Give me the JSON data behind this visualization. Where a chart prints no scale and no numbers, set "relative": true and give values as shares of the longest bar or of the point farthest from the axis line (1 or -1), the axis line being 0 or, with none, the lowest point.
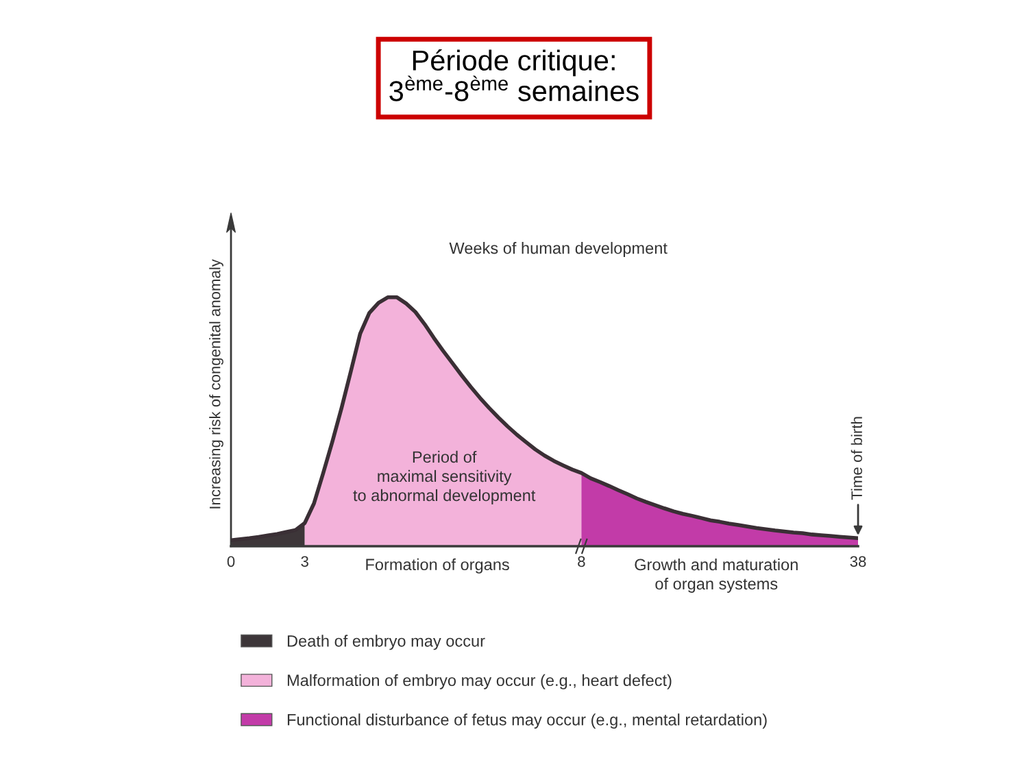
{
  "chart_data": {
    "type": "area",
    "title": "Période critique:\n3$^{ème}$-8$^{ème}$ semaines",
    "xlabel": "Weeks of human development",
    "ylabel": "Increasing risk of congenital anomaly",
    "relative": true,
    "legend": "bottom",
    "categories": [
      "0",
      null,
      null,
      null,
      null,
      null,
      null,
      null,
      "3",
      null,
      null,
      null,
      null,
      null,
      null,
      null,
      null,
      null,
      null,
      null,
      null,
      null,
      null,
      null,
      null,
      null,
      null,
      null,
      null,
      null,
      null,
      null,
      null,
      null,
      null,
      null,
      null,
      null,
      "8",
      null,
      null,
      null,
      null,
      null,
      null,
      null,
      null,
      null,
      null,
      null,
      null,
      null,
      null,
      null,
      null,
      null,
      null,
      null,
      null,
      null,
      null,
      null,
      null,
      null,
      null,
      null,
      null,
      null,
      "38"
    ],
    "series": [
      {
        "name": "Death of embryo may occur",
        "color": "#3d3639",
        "values": [
          0.024,
          0.028,
          0.032,
          0.037,
          0.043,
          0.049,
          0.057,
          0.065,
          0.093,
          null,
          null,
          null,
          null,
          null,
          null,
          null,
          null,
          null,
          null,
          null,
          null,
          null,
          null,
          null,
          null,
          null,
          null,
          null,
          null,
          null,
          null,
          null,
          null,
          null,
          null,
          null,
          null,
          null,
          null,
          null,
          null,
          null,
          null,
          null,
          null,
          null,
          null,
          null,
          null,
          null,
          null,
          null,
          null,
          null,
          null,
          null,
          null,
          null,
          null,
          null,
          null,
          null,
          null,
          null,
          null,
          null,
          null,
          null,
          null
        ]
      },
      {
        "name": "Malformation of embryo may occur (e.g., heart defect)",
        "color": "#f3b2da",
        "values": [
          null,
          null,
          null,
          null,
          null,
          null,
          null,
          null,
          0.093,
          0.172,
          0.294,
          0.421,
          0.557,
          0.703,
          0.853,
          0.937,
          0.978,
          1,
          1,
          0.975,
          0.941,
          0.892,
          0.837,
          0.785,
          0.736,
          0.687,
          0.64,
          0.596,
          0.555,
          0.517,
          0.481,
          0.448,
          0.418,
          0.389,
          0.364,
          0.343,
          0.325,
          0.308,
          0.294,
          null,
          null,
          null,
          null,
          null,
          null,
          null,
          null,
          null,
          null,
          null,
          null,
          null,
          null,
          null,
          null,
          null,
          null,
          null,
          null,
          null,
          null,
          null,
          null,
          null,
          null,
          null,
          null,
          null,
          null
        ]
      },
      {
        "name": "Functional disturbance of fetus may occur (e.g., mental retardation)",
        "color": "#c23ba8",
        "values": [
          null,
          null,
          null,
          null,
          null,
          null,
          null,
          null,
          null,
          null,
          null,
          null,
          null,
          null,
          null,
          null,
          null,
          null,
          null,
          null,
          null,
          null,
          null,
          null,
          null,
          null,
          null,
          null,
          null,
          null,
          null,
          null,
          null,
          null,
          null,
          null,
          null,
          null,
          0.294,
          0.273,
          0.258,
          0.242,
          0.225,
          0.209,
          0.192,
          0.178,
          0.165,
          0.152,
          0.14,
          0.13,
          0.122,
          0.113,
          0.104,
          0.098,
          0.091,
          0.085,
          0.079,
          0.073,
          0.068,
          0.063,
          0.059,
          0.055,
          0.052,
          0.047,
          0.044,
          0.041,
          0.038,
          0.035,
          0.032
        ]
      },
      {
        "type": "line",
        "color": "#3a2f35",
        "values": [
          0.024,
          0.028,
          0.032,
          0.037,
          0.043,
          0.049,
          0.057,
          0.065,
          0.093,
          0.172,
          0.294,
          0.421,
          0.557,
          0.703,
          0.853,
          0.937,
          0.978,
          1,
          1,
          0.975,
          0.941,
          0.892,
          0.837,
          0.785,
          0.736,
          0.687,
          0.64,
          0.596,
          0.555,
          0.517,
          0.481,
          0.448,
          0.418,
          0.389,
          0.364,
          0.343,
          0.325,
          0.308,
          0.294,
          0.273,
          0.258,
          0.242,
          0.225,
          0.209,
          0.192,
          0.178,
          0.165,
          0.152,
          0.14,
          0.13,
          0.122,
          0.113,
          0.104,
          0.098,
          0.091,
          0.085,
          0.079,
          0.073,
          0.068,
          0.063,
          0.059,
          0.055,
          0.052,
          0.047,
          0.044,
          0.041,
          0.038,
          0.035,
          0.032
        ]
      }
    ],
    "annotations": [
      "Period of\nmaximal sensitivity\nto abnormal development",
      "Formation of organs",
      "Growth and maturation\nof organ systems",
      {
        "text": "Time of birth",
        "x": "38",
        "y": 0.032
      }
    ]
  }
}
